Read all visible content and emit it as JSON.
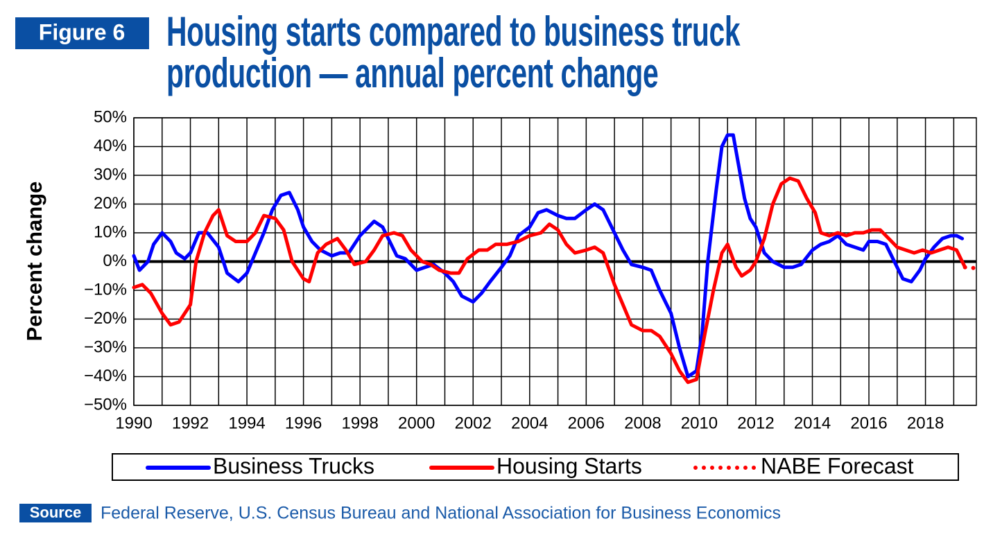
{
  "chart_data": {
    "type": "line",
    "figure_label": "Figure 6",
    "title": "Housing starts compared to business truck production — annual percent change",
    "ylabel": "Percent change",
    "source_label": "Source",
    "source": "Federal Reserve, U.S. Census Bureau and National Association for Business Economics",
    "xlim": [
      1990,
      2019.8
    ],
    "xticks": [
      1990,
      1992,
      1994,
      1996,
      1998,
      2000,
      2002,
      2004,
      2006,
      2008,
      2010,
      2012,
      2014,
      2016,
      2018
    ],
    "ylim": [
      -50,
      50
    ],
    "yticks": [
      {
        "value": 50,
        "label": "50%"
      },
      {
        "value": 40,
        "label": "40%"
      },
      {
        "value": 30,
        "label": "30%"
      },
      {
        "value": 20,
        "label": "20%"
      },
      {
        "value": 10,
        "label": "10%"
      },
      {
        "value": 0,
        "label": "0%"
      },
      {
        "value": -10,
        "label": "−10%"
      },
      {
        "value": -20,
        "label": "−20%"
      },
      {
        "value": -30,
        "label": "−30%"
      },
      {
        "value": -40,
        "label": "−40%"
      },
      {
        "value": -50,
        "label": "−50%"
      }
    ],
    "grid": true,
    "legend": "bottom",
    "series": [
      {
        "name": "Business Trucks",
        "color": "#0000ff",
        "style": "solid",
        "x": [
          1990.0,
          1990.2,
          1990.5,
          1990.7,
          1991.0,
          1991.3,
          1991.5,
          1991.8,
          1992.0,
          1992.3,
          1992.6,
          1993.0,
          1993.3,
          1993.7,
          1994.0,
          1994.3,
          1994.6,
          1994.9,
          1995.2,
          1995.5,
          1995.8,
          1996.0,
          1996.3,
          1996.6,
          1997.0,
          1997.3,
          1997.6,
          1998.0,
          1998.3,
          1998.5,
          1998.8,
          1999.0,
          1999.3,
          1999.6,
          2000.0,
          2000.3,
          2000.6,
          2001.0,
          2001.3,
          2001.6,
          2002.0,
          2002.3,
          2002.6,
          2003.0,
          2003.3,
          2003.6,
          2004.0,
          2004.3,
          2004.6,
          2005.0,
          2005.3,
          2005.6,
          2006.0,
          2006.3,
          2006.6,
          2007.0,
          2007.3,
          2007.6,
          2008.0,
          2008.3,
          2008.6,
          2009.0,
          2009.3,
          2009.6,
          2009.9,
          2010.1,
          2010.3,
          2010.6,
          2010.8,
          2011.0,
          2011.2,
          2011.4,
          2011.6,
          2011.8,
          2012.0,
          2012.3,
          2012.6,
          2013.0,
          2013.3,
          2013.6,
          2014.0,
          2014.3,
          2014.6,
          2014.9,
          2015.2,
          2015.5,
          2015.8,
          2016.0,
          2016.3,
          2016.6,
          2016.9,
          2017.2,
          2017.5,
          2017.8,
          2018.0,
          2018.3,
          2018.6,
          2018.9,
          2019.1,
          2019.3
        ],
        "values": [
          2,
          -3,
          0,
          6,
          10,
          7,
          3,
          1,
          3,
          10,
          10,
          5,
          -4,
          -7,
          -4,
          3,
          10,
          18,
          23,
          24,
          18,
          12,
          7,
          4,
          2,
          3,
          3,
          9,
          12,
          14,
          12,
          8,
          2,
          1,
          -3,
          -2,
          -1,
          -4,
          -7,
          -12,
          -14,
          -11,
          -7,
          -2,
          2,
          9,
          12,
          17,
          18,
          16,
          15,
          15,
          18,
          20,
          18,
          10,
          4,
          -1,
          -2,
          -3,
          -10,
          -18,
          -30,
          -40,
          -38,
          -25,
          0,
          25,
          40,
          44,
          44,
          33,
          22,
          15,
          12,
          3,
          0,
          -2,
          -2,
          -1,
          4,
          6,
          7,
          9,
          6,
          5,
          4,
          7,
          7,
          6,
          0,
          -6,
          -7,
          -3,
          1,
          5,
          8,
          9,
          9,
          8
        ]
      },
      {
        "name": "Housing Starts",
        "color": "#ff0000",
        "style": "solid",
        "x": [
          1990.0,
          1990.3,
          1990.6,
          1991.0,
          1991.3,
          1991.6,
          1992.0,
          1992.2,
          1992.5,
          1992.8,
          1993.0,
          1993.3,
          1993.6,
          1994.0,
          1994.3,
          1994.6,
          1995.0,
          1995.3,
          1995.6,
          1996.0,
          1996.2,
          1996.5,
          1996.8,
          1997.2,
          1997.5,
          1997.8,
          1998.2,
          1998.5,
          1998.8,
          1999.2,
          1999.5,
          1999.8,
          2000.2,
          2000.5,
          2000.8,
          2001.2,
          2001.5,
          2001.8,
          2002.2,
          2002.5,
          2002.8,
          2003.2,
          2003.6,
          2004.0,
          2004.4,
          2004.7,
          2005.0,
          2005.3,
          2005.6,
          2006.0,
          2006.3,
          2006.6,
          2007.0,
          2007.3,
          2007.6,
          2008.0,
          2008.3,
          2008.6,
          2009.0,
          2009.3,
          2009.6,
          2009.9,
          2010.2,
          2010.5,
          2010.8,
          2011.0,
          2011.3,
          2011.5,
          2011.8,
          2012.0,
          2012.3,
          2012.6,
          2012.9,
          2013.2,
          2013.5,
          2013.8,
          2014.1,
          2014.3,
          2014.6,
          2014.9,
          2015.2,
          2015.5,
          2015.8,
          2016.1,
          2016.4,
          2016.7,
          2017.0,
          2017.3,
          2017.6,
          2017.9,
          2018.2,
          2018.5,
          2018.8,
          2019.1,
          2019.3,
          2019.4
        ],
        "values": [
          -9,
          -8,
          -11,
          -18,
          -22,
          -21,
          -15,
          0,
          10,
          16,
          18,
          9,
          7,
          7,
          10,
          16,
          15,
          11,
          0,
          -6,
          -7,
          3,
          6,
          8,
          4,
          -1,
          0,
          4,
          9,
          10,
          9,
          4,
          0,
          -1,
          -3,
          -4,
          -4,
          1,
          4,
          4,
          6,
          6,
          7,
          9,
          10,
          13,
          11,
          6,
          3,
          4,
          5,
          3,
          -8,
          -15,
          -22,
          -24,
          -24,
          -26,
          -32,
          -38,
          -42,
          -41,
          -25,
          -10,
          3,
          6,
          -2,
          -5,
          -3,
          0,
          8,
          20,
          27,
          29,
          28,
          22,
          17,
          10,
          9,
          10,
          9,
          10,
          10,
          11,
          11,
          8,
          5,
          4,
          3,
          4,
          3,
          4,
          5,
          4,
          0,
          -2
        ]
      },
      {
        "name": "NABE Forecast",
        "color": "#ff0000",
        "style": "dotted",
        "x": [
          2019.4,
          2019.6,
          2019.8
        ],
        "values": [
          -2,
          -2,
          -2.5
        ]
      }
    ]
  }
}
